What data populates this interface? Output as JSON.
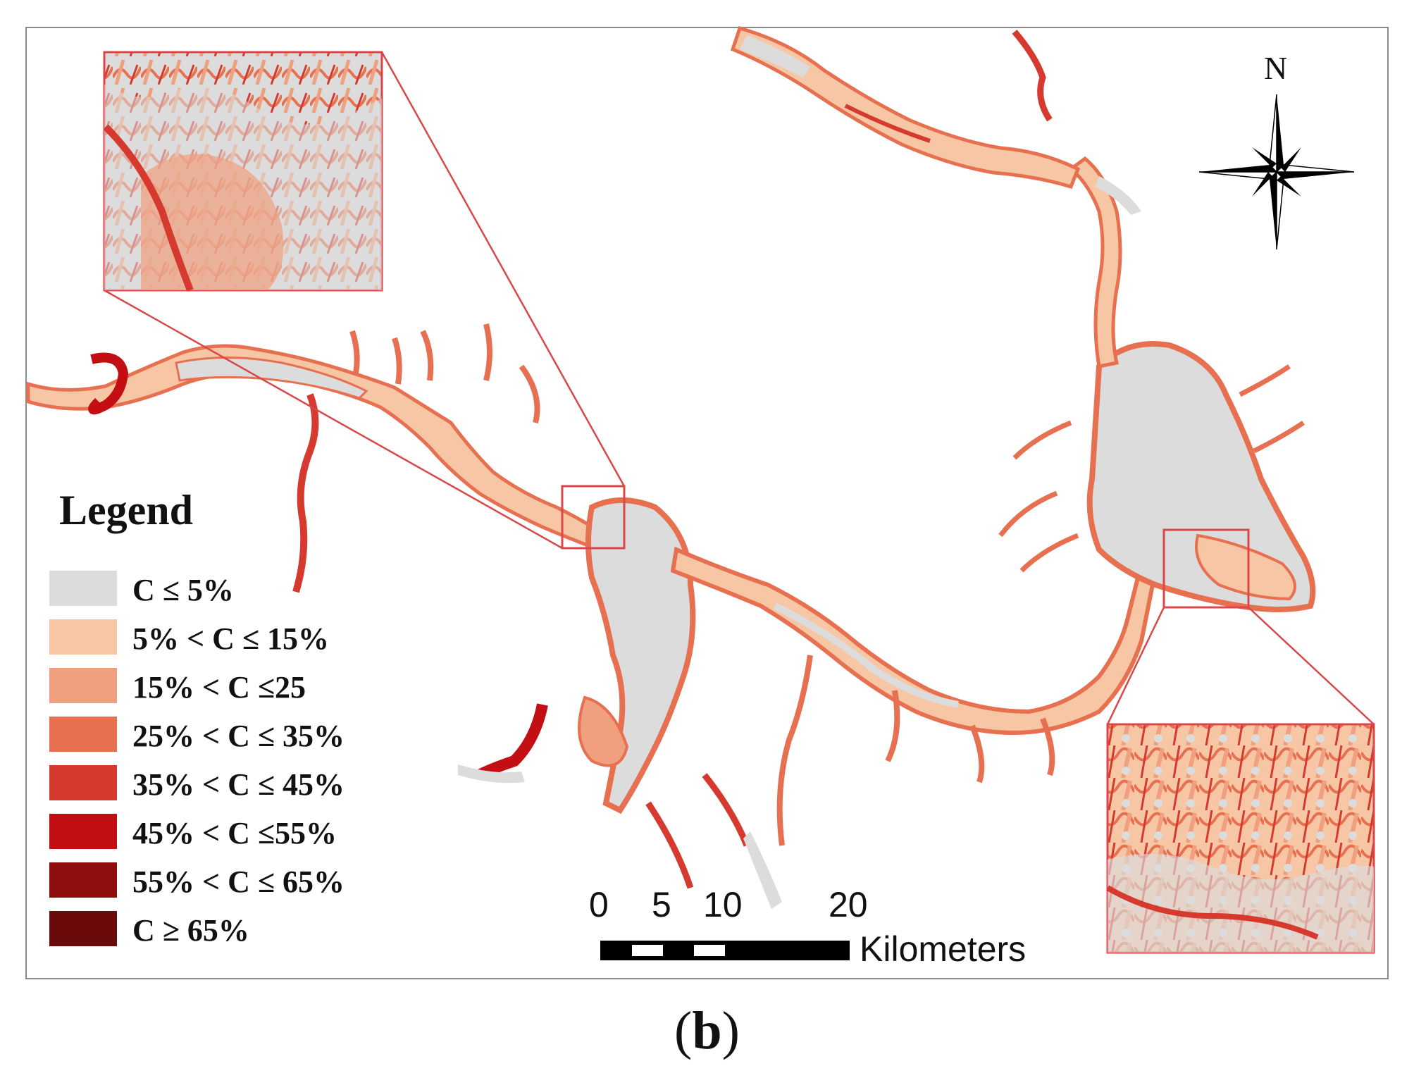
{
  "legend": {
    "title": "Legend",
    "items": [
      {
        "label": "C ≤ 5%",
        "color": "#dcdcdc"
      },
      {
        "label": "5% < C ≤ 15%",
        "color": "#f6c6a5"
      },
      {
        "label": "15% < C ≤25",
        "color": "#f0a07f"
      },
      {
        "label": "25% < C ≤ 35%",
        "color": "#e6704f"
      },
      {
        "label": "35% < C ≤ 45%",
        "color": "#d63a2f"
      },
      {
        "label": "45% < C ≤55%",
        "color": "#c30f14"
      },
      {
        "label": "55% < C ≤ 65%",
        "color": "#8e0d0d"
      },
      {
        "label": "C ≥ 65%",
        "color": "#6a0a0a"
      }
    ]
  },
  "scale_bar": {
    "ticks": [
      "0",
      "5",
      "10",
      "20"
    ],
    "units": "Kilometers"
  },
  "north_arrow": {
    "label": "N"
  },
  "caption": {
    "open": "(",
    "letter": "b",
    "close": ")"
  },
  "colors": {
    "frame": "#8a8a8a",
    "inset_border": "#d9474a",
    "water_low": "#dcdcdc"
  }
}
